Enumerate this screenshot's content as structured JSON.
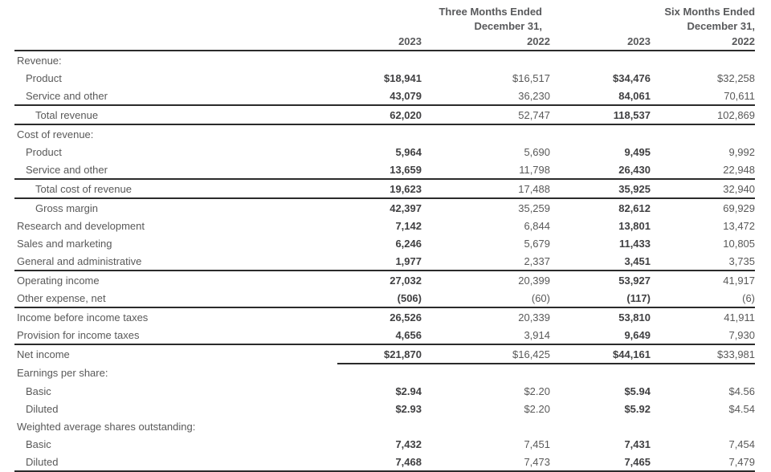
{
  "document": {
    "type": "income-statement",
    "colors": {
      "text_regular": "#595959",
      "text_bold": "#404042",
      "header_text": "#58595b",
      "rule": "#2b2b2b",
      "background": "#ffffff"
    },
    "header": {
      "groups": [
        {
          "line1": "Three Months Ended",
          "line2": "December 31,"
        },
        {
          "line1": "Six Months Ended",
          "line2": "December 31,"
        }
      ],
      "years": [
        "2023",
        "2022",
        "2023",
        "2022"
      ]
    },
    "rows": [
      {
        "label": "Revenue:",
        "indent": 0,
        "values": [
          "",
          "",
          "",
          ""
        ],
        "rule": ""
      },
      {
        "label": "Product",
        "indent": 1,
        "values": [
          "$18,941",
          "$16,517",
          "$34,476",
          "$32,258"
        ],
        "rule": ""
      },
      {
        "label": "Service and other",
        "indent": 1,
        "values": [
          "43,079",
          "36,230",
          "84,061",
          "70,611"
        ],
        "rule": "full"
      },
      {
        "label": "Total revenue",
        "indent": 2,
        "values": [
          "62,020",
          "52,747",
          "118,537",
          "102,869"
        ],
        "rule": "full"
      },
      {
        "label": "Cost of revenue:",
        "indent": 0,
        "values": [
          "",
          "",
          "",
          ""
        ],
        "rule": ""
      },
      {
        "label": "Product",
        "indent": 1,
        "values": [
          "5,964",
          "5,690",
          "9,495",
          "9,992"
        ],
        "rule": ""
      },
      {
        "label": "Service and other",
        "indent": 1,
        "values": [
          "13,659",
          "11,798",
          "26,430",
          "22,948"
        ],
        "rule": "full"
      },
      {
        "label": "Total cost of revenue",
        "indent": 2,
        "values": [
          "19,623",
          "17,488",
          "35,925",
          "32,940"
        ],
        "rule": "full"
      },
      {
        "label": "Gross margin",
        "indent": 2,
        "values": [
          "42,397",
          "35,259",
          "82,612",
          "69,929"
        ],
        "rule": ""
      },
      {
        "label": "Research and development",
        "indent": 0,
        "values": [
          "7,142",
          "6,844",
          "13,801",
          "13,472"
        ],
        "rule": ""
      },
      {
        "label": "Sales and marketing",
        "indent": 0,
        "values": [
          "6,246",
          "5,679",
          "11,433",
          "10,805"
        ],
        "rule": ""
      },
      {
        "label": "General and administrative",
        "indent": 0,
        "values": [
          "1,977",
          "2,337",
          "3,451",
          "3,735"
        ],
        "rule": "full"
      },
      {
        "label": "Operating income",
        "indent": 0,
        "values": [
          "27,032",
          "20,399",
          "53,927",
          "41,917"
        ],
        "rule": ""
      },
      {
        "label": "Other expense, net",
        "indent": 0,
        "values": [
          "(506)",
          "(60)",
          "(117)",
          "(6)"
        ],
        "rule": "full"
      },
      {
        "label": "Income before income taxes",
        "indent": 0,
        "values": [
          "26,526",
          "20,339",
          "53,810",
          "41,911"
        ],
        "rule": ""
      },
      {
        "label": "Provision for income taxes",
        "indent": 0,
        "values": [
          "4,656",
          "3,914",
          "9,649",
          "7,930"
        ],
        "rule": "full"
      },
      {
        "label": "Net income",
        "indent": 0,
        "values": [
          "$21,870",
          "$16,425",
          "$44,161",
          "$33,981"
        ],
        "rule": "numeric"
      },
      {
        "label": "Earnings per share:",
        "indent": 0,
        "values": [
          "",
          "",
          "",
          ""
        ],
        "rule": ""
      },
      {
        "label": "Basic",
        "indent": 1,
        "values": [
          "$2.94",
          "$2.20",
          "$5.94",
          "$4.56"
        ],
        "rule": ""
      },
      {
        "label": "Diluted",
        "indent": 1,
        "values": [
          "$2.93",
          "$2.20",
          "$5.92",
          "$4.54"
        ],
        "rule": ""
      },
      {
        "label": "Weighted average shares outstanding:",
        "indent": 0,
        "values": [
          "",
          "",
          "",
          ""
        ],
        "rule": ""
      },
      {
        "label": "Basic",
        "indent": 1,
        "values": [
          "7,432",
          "7,451",
          "7,431",
          "7,454"
        ],
        "rule": ""
      },
      {
        "label": "Diluted",
        "indent": 1,
        "values": [
          "7,468",
          "7,473",
          "7,465",
          "7,479"
        ],
        "rule": "bottom"
      }
    ]
  }
}
